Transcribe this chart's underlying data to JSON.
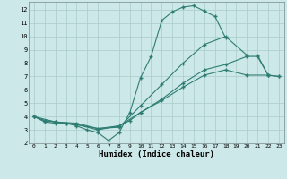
{
  "xlabel": "Humidex (Indice chaleur)",
  "background_color": "#cce8e8",
  "grid_color": "#aacccc",
  "line_color": "#2e7d72",
  "xlim": [
    -0.5,
    23.5
  ],
  "ylim": [
    2,
    12.6
  ],
  "yticks": [
    2,
    3,
    4,
    5,
    6,
    7,
    8,
    9,
    10,
    11,
    12
  ],
  "xticks": [
    0,
    1,
    2,
    3,
    4,
    5,
    6,
    7,
    8,
    9,
    10,
    11,
    12,
    13,
    14,
    15,
    16,
    17,
    18,
    19,
    20,
    21,
    22,
    23
  ],
  "c1x": [
    0,
    1,
    2,
    3,
    4,
    5,
    6,
    7,
    8,
    9,
    10,
    11,
    12,
    13,
    14,
    15,
    16,
    17,
    18
  ],
  "c1y": [
    4.0,
    3.6,
    3.5,
    3.5,
    3.3,
    3.0,
    2.8,
    2.2,
    2.8,
    4.3,
    6.9,
    8.5,
    11.2,
    11.85,
    12.2,
    12.3,
    11.9,
    11.5,
    9.9
  ],
  "c2x": [
    0,
    1,
    2,
    3,
    4,
    6,
    8,
    10,
    12,
    14,
    16,
    18,
    20,
    21,
    22
  ],
  "c2y": [
    4.0,
    3.7,
    3.6,
    3.5,
    3.4,
    3.1,
    3.2,
    4.8,
    6.4,
    8.0,
    9.4,
    10.0,
    8.6,
    8.6,
    7.1
  ],
  "c3x": [
    0,
    1,
    2,
    4,
    6,
    8,
    9,
    10,
    12,
    14,
    16,
    18,
    20,
    21,
    22,
    23
  ],
  "c3y": [
    4.0,
    3.7,
    3.6,
    3.4,
    3.0,
    3.3,
    3.7,
    4.3,
    5.3,
    6.5,
    7.5,
    7.9,
    8.5,
    8.5,
    7.1,
    7.0
  ],
  "c4x": [
    0,
    2,
    4,
    6,
    8,
    10,
    12,
    14,
    16,
    18,
    20,
    22,
    23
  ],
  "c4y": [
    4.0,
    3.6,
    3.5,
    3.1,
    3.3,
    4.3,
    5.2,
    6.2,
    7.1,
    7.5,
    7.1,
    7.1,
    7.0
  ]
}
